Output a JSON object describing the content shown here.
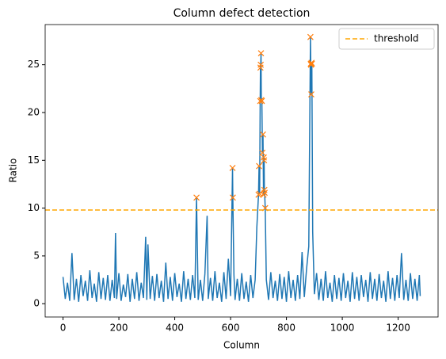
{
  "chart_data": {
    "type": "line",
    "title": "Column defect detection",
    "xlabel": "Column",
    "ylabel": "Ratio",
    "xlim": [
      -64,
      1343
    ],
    "ylim": [
      -1.39,
      29.2
    ],
    "xticks": [
      0,
      200,
      400,
      600,
      800,
      1000,
      1200
    ],
    "yticks": [
      0,
      5,
      10,
      15,
      20,
      25
    ],
    "legend": "upper right",
    "series": [
      {
        "color": "#1f77b4",
        "x": [
          0,
          8,
          16,
          24,
          32,
          40,
          48,
          56,
          64,
          72,
          80,
          88,
          96,
          104,
          112,
          120,
          128,
          136,
          144,
          152,
          160,
          168,
          176,
          184,
          188,
          192,
          200,
          208,
          216,
          224,
          232,
          240,
          248,
          256,
          264,
          272,
          280,
          288,
          296,
          300,
          304,
          312,
          320,
          328,
          336,
          344,
          352,
          360,
          368,
          376,
          384,
          392,
          400,
          408,
          416,
          424,
          432,
          440,
          448,
          456,
          464,
          472,
          478,
          484,
          492,
          500,
          508,
          516,
          520,
          528,
          536,
          544,
          552,
          560,
          568,
          576,
          584,
          592,
          600,
          607,
          608,
          612,
          616,
          624,
          632,
          640,
          648,
          656,
          664,
          672,
          680,
          688,
          694,
          700,
          702,
          704,
          706,
          707,
          708,
          709,
          710,
          712,
          714,
          716,
          718,
          719,
          720,
          721,
          722,
          724,
          728,
          736,
          744,
          752,
          760,
          768,
          776,
          784,
          792,
          800,
          808,
          816,
          824,
          832,
          840,
          848,
          856,
          864,
          872,
          880,
          886,
          887,
          888,
          889,
          890,
          891,
          894,
          900,
          908,
          916,
          924,
          932,
          940,
          948,
          956,
          964,
          972,
          980,
          988,
          996,
          1004,
          1012,
          1020,
          1028,
          1036,
          1044,
          1052,
          1060,
          1068,
          1076,
          1084,
          1092,
          1100,
          1108,
          1116,
          1124,
          1132,
          1140,
          1148,
          1156,
          1164,
          1172,
          1180,
          1188,
          1196,
          1204,
          1212,
          1220,
          1228,
          1236,
          1244,
          1252,
          1260,
          1268,
          1276,
          1279
        ],
        "values": [
          2.8,
          0.5,
          2.2,
          0.3,
          5.3,
          0.4,
          2.6,
          0.2,
          3.0,
          0.8,
          2.4,
          0.3,
          3.5,
          0.6,
          2.1,
          0.2,
          3.3,
          0.5,
          2.7,
          0.4,
          3.0,
          0.3,
          2.5,
          0.6,
          7.4,
          0.5,
          3.2,
          0.3,
          2.0,
          0.7,
          3.1,
          0.2,
          2.6,
          0.5,
          3.3,
          0.3,
          2.2,
          0.6,
          7.0,
          0.4,
          6.2,
          0.5,
          2.9,
          0.3,
          3.1,
          0.6,
          2.4,
          0.2,
          4.3,
          0.5,
          2.8,
          0.3,
          3.2,
          0.7,
          2.1,
          0.2,
          3.4,
          0.5,
          2.6,
          0.4,
          3.0,
          0.6,
          11.1,
          0.4,
          2.5,
          0.3,
          3.1,
          9.2,
          0.5,
          2.7,
          0.3,
          3.4,
          0.6,
          2.2,
          0.2,
          3.3,
          0.5,
          4.7,
          0.8,
          14.2,
          11.1,
          3.0,
          0.4,
          2.6,
          0.3,
          3.2,
          0.5,
          2.3,
          0.2,
          3.0,
          0.6,
          2.5,
          8.0,
          11.4,
          14.4,
          11.5,
          21.2,
          24.7,
          25.0,
          26.2,
          21.3,
          21.2,
          15.8,
          17.7,
          11.4,
          15.3,
          15.0,
          11.9,
          11.6,
          10.0,
          2.5,
          0.4,
          3.3,
          0.6,
          2.4,
          0.3,
          3.1,
          0.5,
          2.8,
          0.2,
          3.4,
          0.6,
          2.5,
          0.3,
          3.0,
          0.5,
          5.4,
          0.7,
          3.6,
          6.0,
          27.9,
          25.1,
          25.0,
          21.9,
          25.2,
          25.1,
          7.5,
          1.0,
          3.2,
          0.4,
          2.6,
          0.3,
          3.4,
          0.6,
          2.2,
          0.2,
          3.0,
          0.5,
          2.7,
          0.3,
          3.2,
          0.6,
          2.4,
          0.2,
          3.3,
          0.5,
          2.8,
          0.3,
          3.0,
          0.7,
          2.5,
          0.2,
          3.3,
          0.5,
          2.6,
          0.3,
          3.1,
          0.6,
          2.4,
          0.2,
          3.4,
          0.5,
          2.7,
          0.3,
          3.0,
          0.6,
          5.3,
          0.4,
          2.5,
          0.3,
          3.2,
          0.5,
          2.6,
          0.3,
          3.0,
          0.8
        ]
      }
    ],
    "markers": {
      "color": "#ff7f0e",
      "x": [
        478,
        607,
        608,
        700,
        702,
        704,
        706,
        707,
        708,
        709,
        710,
        712,
        714,
        716,
        718,
        719,
        720,
        721,
        722,
        724,
        886,
        887,
        888,
        889,
        890,
        891
      ],
      "values": [
        11.1,
        14.2,
        11.1,
        11.4,
        14.4,
        11.5,
        21.2,
        24.7,
        25.0,
        26.2,
        21.3,
        21.2,
        15.8,
        17.7,
        11.4,
        15.3,
        15.0,
        11.9,
        11.6,
        10.0,
        27.9,
        25.1,
        25.0,
        21.9,
        25.2,
        25.1
      ]
    },
    "threshold": {
      "name": "threshold",
      "value": 9.8,
      "color": "#ffa500"
    }
  }
}
